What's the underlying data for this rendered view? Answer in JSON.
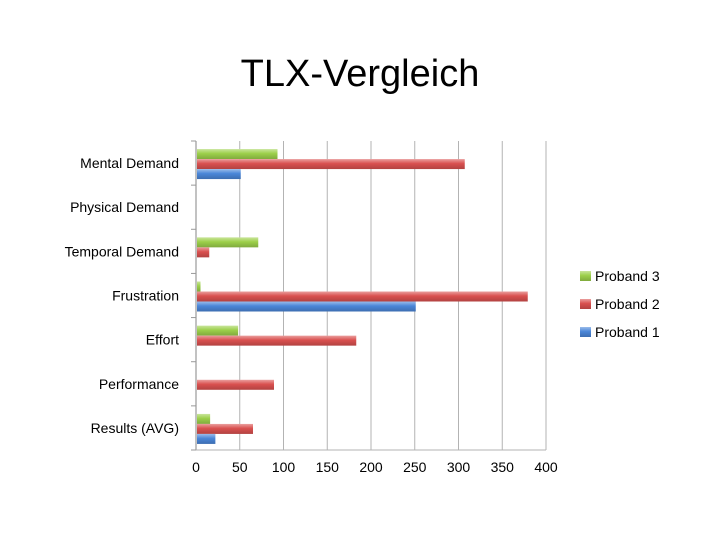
{
  "chart_data": {
    "type": "bar",
    "orientation": "horizontal",
    "title": "TLX-Vergleich",
    "xlabel": "",
    "ylabel": "",
    "categories": [
      "Mental Demand",
      "Physical Demand",
      "Temporal Demand",
      "Frustration",
      "Effort",
      "Performance",
      "Results (AVG)"
    ],
    "series": [
      {
        "name": "Proband 3",
        "color": "#9ccf4a",
        "values": [
          92,
          0,
          70,
          4,
          47,
          0,
          15
        ]
      },
      {
        "name": "Proband 2",
        "color": "#d9504f",
        "values": [
          306,
          0,
          14,
          378,
          182,
          88,
          64
        ]
      },
      {
        "name": "Proband 1",
        "color": "#4a86d8",
        "values": [
          50,
          0,
          0,
          250,
          0,
          0,
          21
        ]
      }
    ],
    "xlim": [
      0,
      400
    ],
    "xticks": [
      0,
      50,
      100,
      150,
      200,
      250,
      300,
      350,
      400
    ],
    "grid": true,
    "legend_position": "right",
    "legend_order": [
      "Proband 3",
      "Proband 2",
      "Proband 1"
    ]
  }
}
